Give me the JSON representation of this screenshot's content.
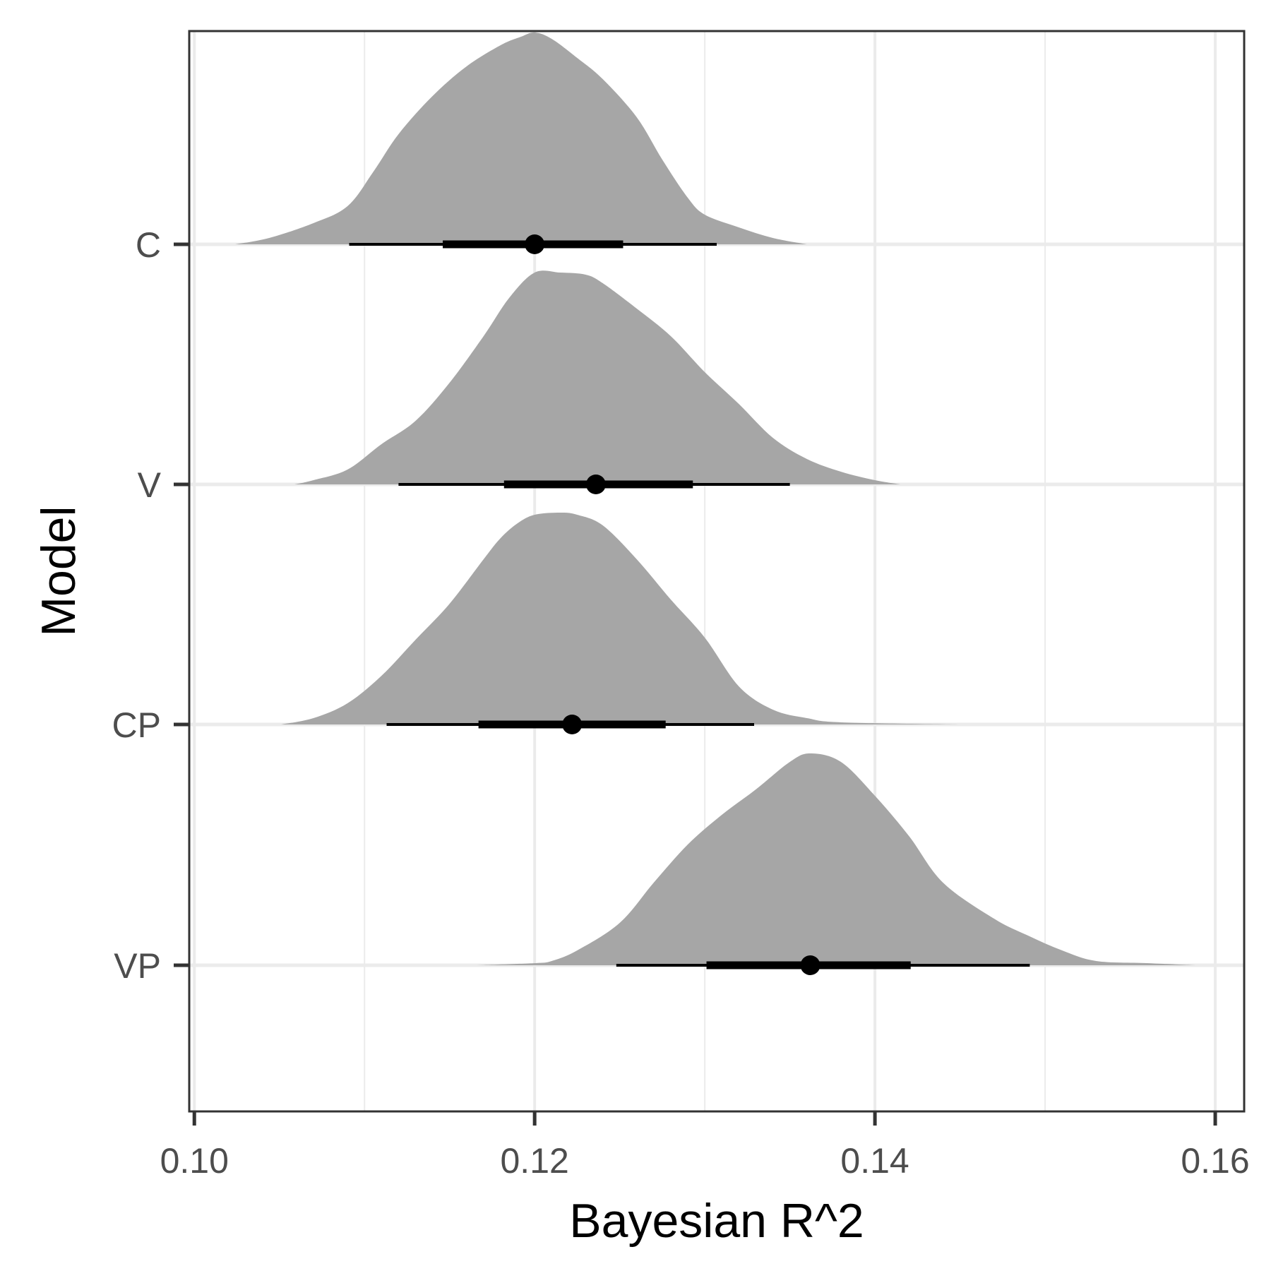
{
  "chart_data": {
    "type": "halfeye",
    "title": "",
    "xlabel": "Bayesian R^2",
    "ylabel": "Model",
    "xlim": [
      0.0997,
      0.1617
    ],
    "x_ticks": [
      0.1,
      0.12,
      0.14,
      0.16
    ],
    "x_tick_labels": [
      "0.10",
      "0.12",
      "0.14",
      "0.16"
    ],
    "categories": [
      "C",
      "V",
      "CP",
      "VP"
    ],
    "grid": true,
    "legend": "none",
    "colors": {
      "density": "#a6a6a6",
      "interval": "#000000",
      "grid": "#ebebeb",
      "panel_border": "#333333"
    },
    "series": [
      {
        "category": "C",
        "point": 0.12,
        "interval_66": [
          0.1146,
          0.1252
        ],
        "interval_95": [
          0.1091,
          0.1307
        ],
        "density": {
          "x": [
            0.1024,
            0.1044,
            0.107,
            0.109,
            0.1105,
            0.112,
            0.114,
            0.116,
            0.118,
            0.1192,
            0.12,
            0.121,
            0.1225,
            0.124,
            0.126,
            0.1275,
            0.129,
            0.13,
            0.132,
            0.134,
            0.136
          ],
          "y": [
            0.0,
            0.03,
            0.1,
            0.18,
            0.34,
            0.52,
            0.7,
            0.84,
            0.94,
            0.98,
            1.0,
            0.97,
            0.88,
            0.78,
            0.6,
            0.4,
            0.22,
            0.14,
            0.08,
            0.03,
            0.0
          ]
        }
      },
      {
        "category": "V",
        "point": 0.1236,
        "interval_66": [
          0.1182,
          0.1293
        ],
        "interval_95": [
          0.112,
          0.135
        ],
        "density": {
          "x": [
            0.1059,
            0.107,
            0.109,
            0.111,
            0.113,
            0.115,
            0.117,
            0.1185,
            0.12,
            0.1215,
            0.123,
            0.124,
            0.126,
            0.128,
            0.13,
            0.132,
            0.134,
            0.136,
            0.138,
            0.14,
            0.1415
          ],
          "y": [
            0.0,
            0.02,
            0.07,
            0.19,
            0.3,
            0.48,
            0.7,
            0.88,
            1.0,
            1.0,
            0.99,
            0.95,
            0.83,
            0.7,
            0.53,
            0.38,
            0.22,
            0.12,
            0.06,
            0.02,
            0.0
          ]
        }
      },
      {
        "category": "CP",
        "point": 0.1222,
        "interval_66": [
          0.1167,
          0.1277
        ],
        "interval_95": [
          0.1113,
          0.1329
        ],
        "density": {
          "x": [
            0.1051,
            0.107,
            0.109,
            0.111,
            0.113,
            0.115,
            0.117,
            0.118,
            0.119,
            0.12,
            0.1215,
            0.1225,
            0.124,
            0.126,
            0.128,
            0.13,
            0.132,
            0.134,
            0.136,
            0.138,
            0.145
          ],
          "y": [
            0.0,
            0.03,
            0.1,
            0.23,
            0.4,
            0.57,
            0.78,
            0.88,
            0.95,
            0.99,
            1.0,
            0.99,
            0.94,
            0.78,
            0.59,
            0.41,
            0.18,
            0.07,
            0.03,
            0.01,
            0.0
          ]
        }
      },
      {
        "category": "VP",
        "point": 0.1362,
        "interval_66": [
          0.1301,
          0.1421
        ],
        "interval_95": [
          0.1248,
          0.1491
        ],
        "density": {
          "x": [
            0.1166,
            0.12,
            0.121,
            0.1225,
            0.125,
            0.127,
            0.129,
            0.131,
            0.133,
            0.135,
            0.1362,
            0.138,
            0.14,
            0.142,
            0.144,
            0.147,
            0.149,
            0.151,
            0.153,
            0.156,
            0.1588
          ],
          "y": [
            0.0,
            0.01,
            0.02,
            0.07,
            0.2,
            0.39,
            0.57,
            0.71,
            0.83,
            0.96,
            1.0,
            0.96,
            0.8,
            0.61,
            0.39,
            0.22,
            0.14,
            0.07,
            0.02,
            0.01,
            0.0
          ]
        }
      }
    ]
  }
}
